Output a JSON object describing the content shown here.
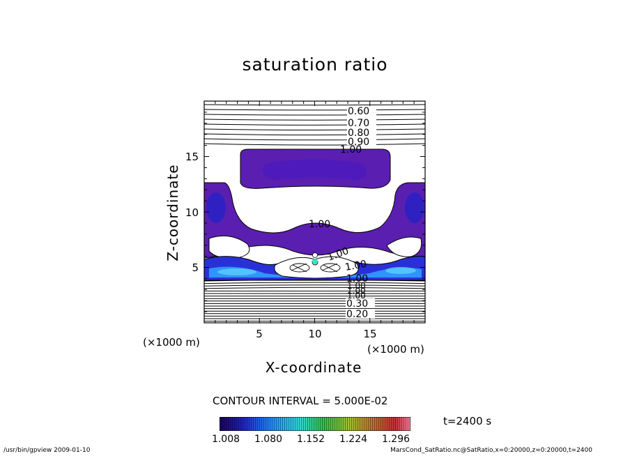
{
  "chart_data": {
    "type": "contour",
    "title": "saturation ratio",
    "xlabel": "X-coordinate",
    "ylabel": "Z-coordinate",
    "x_unit": "(×1000 m)",
    "z_unit": "(×1000 m)",
    "xlim": [
      0,
      20
    ],
    "ylim": [
      0,
      20
    ],
    "x_ticks": [
      "5",
      "10",
      "15"
    ],
    "y_ticks": [
      "5",
      "10",
      "15"
    ],
    "contour_labels": [
      "0.60",
      "0.70",
      "0.80",
      "0.90",
      "1.00",
      "1.00",
      "1.00",
      "1.00",
      "1.00",
      "0.30",
      "0.20"
    ],
    "contour_interval_text": "CONTOUR INTERVAL = 5.000E-02",
    "time_text": "t=2400 s",
    "colorbar": {
      "labels": [
        "1.008",
        "1.080",
        "1.152",
        "1.224",
        "1.296"
      ],
      "min": 1.008,
      "max": 1.332
    },
    "colors": {
      "violet": "#5a1fb0",
      "deep_blue": "#2020c8",
      "light_blue": "#30a0ff",
      "cyan": "#30e8c8",
      "white": "#ffffff"
    }
  },
  "footer": {
    "left": "/usr/bin/gpview   2009-01-10",
    "right": "MarsCond_SatRatio.nc@SatRatio,x=0:20000,z=0:20000,t=2400"
  }
}
